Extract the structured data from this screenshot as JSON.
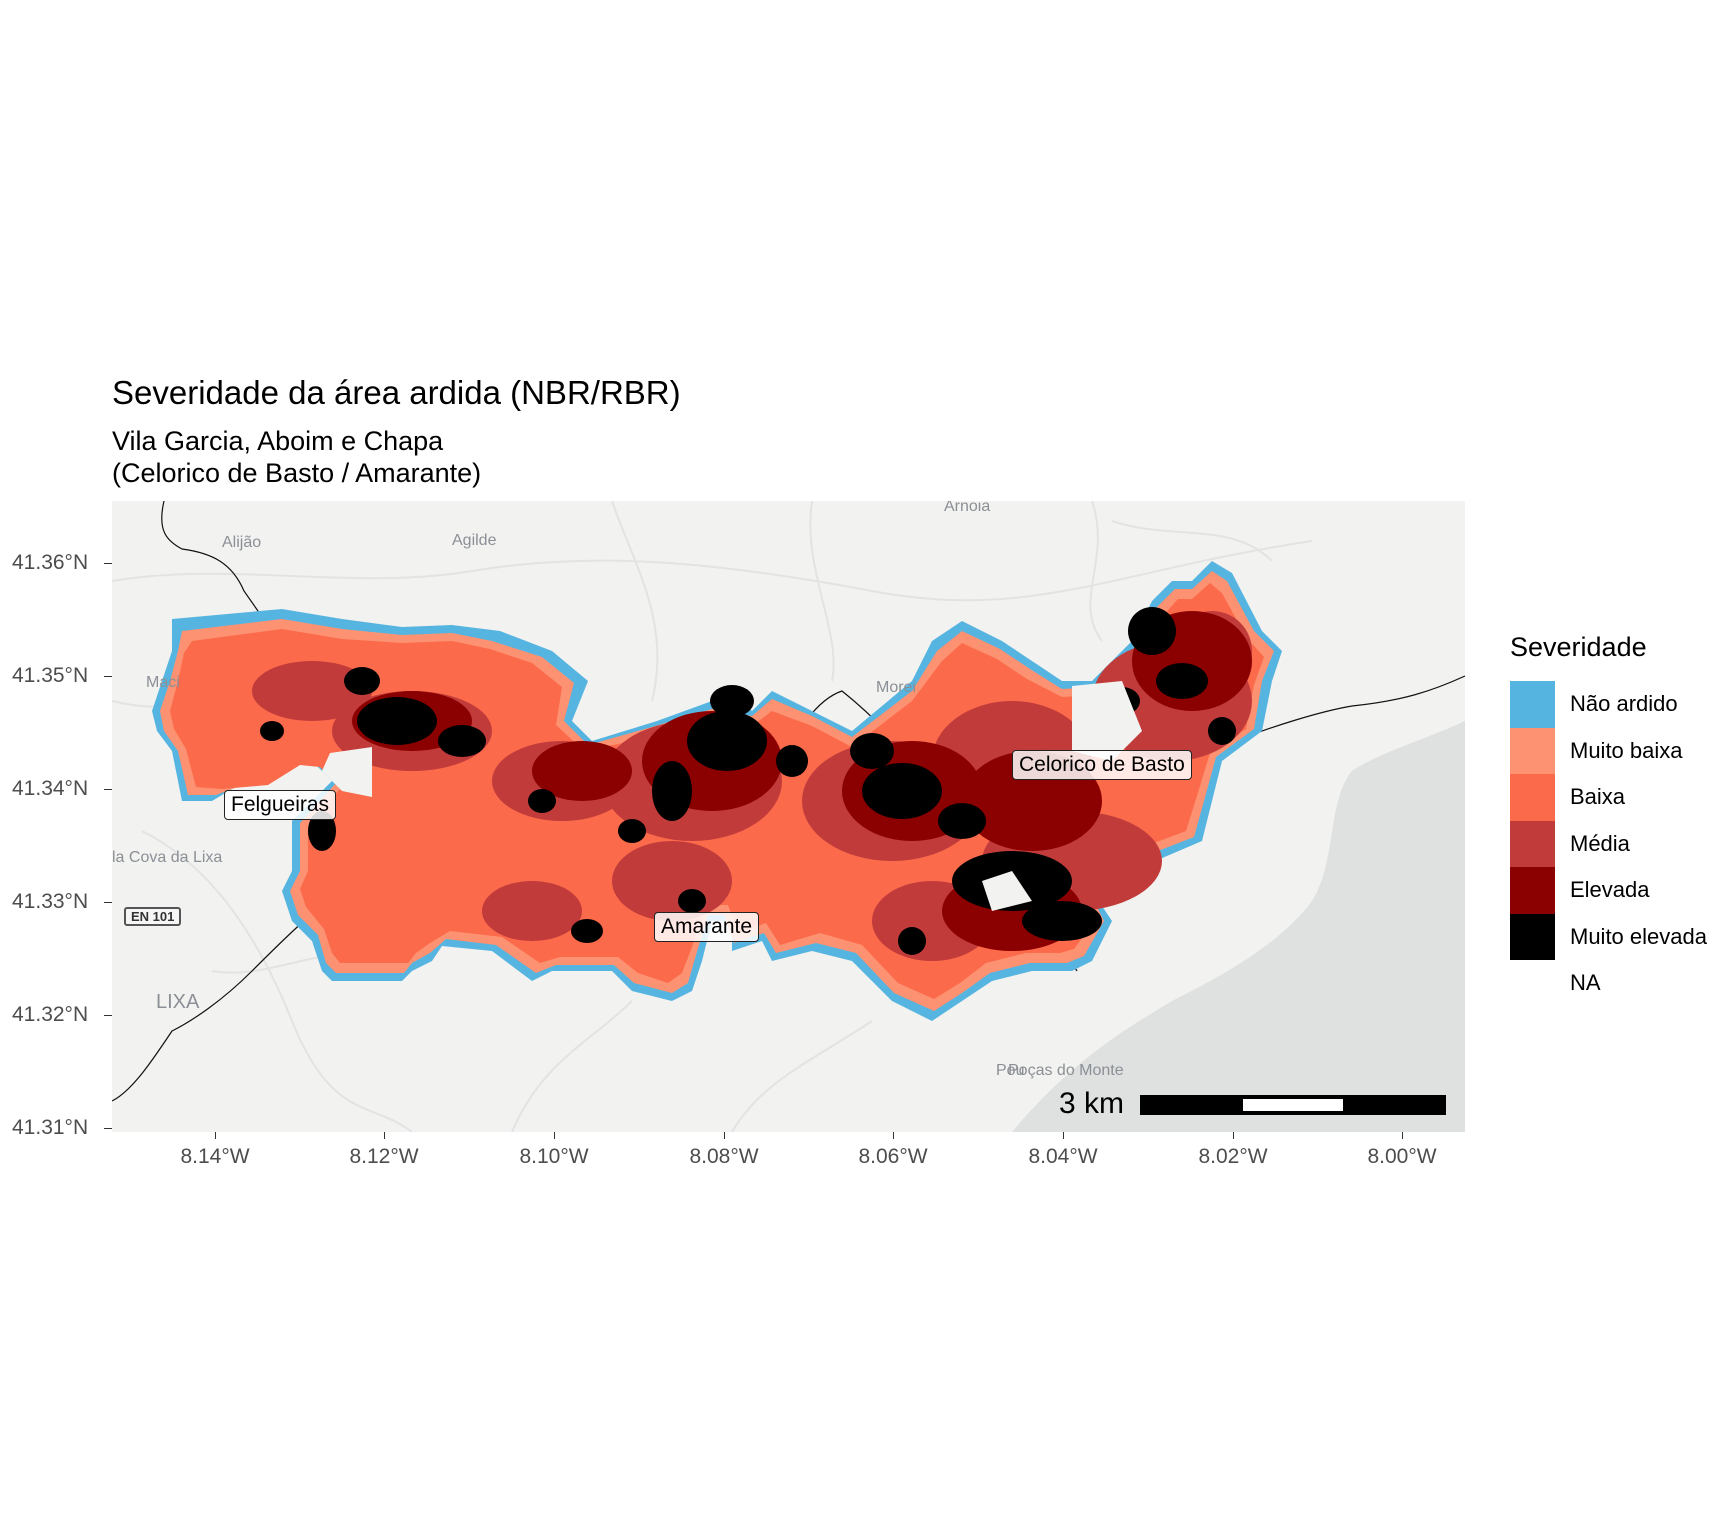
{
  "title": "Severidade da área ardida (NBR/RBR)",
  "subtitle_line1": "Vila Garcia, Aboim e Chapa",
  "subtitle_line2": "(Celorico de Basto / Amarante)",
  "axes": {
    "y_ticks": [
      "41.36°N",
      "41.35°N",
      "41.34°N",
      "41.33°N",
      "41.32°N",
      "41.31°N"
    ],
    "x_ticks": [
      "8.14°W",
      "8.12°W",
      "8.10°W",
      "8.08°W",
      "8.06°W",
      "8.04°W",
      "8.02°W",
      "8.00°W"
    ]
  },
  "legend": {
    "title": "Severidade",
    "items": [
      {
        "label": "Não ardido",
        "color": "#56b4e0"
      },
      {
        "label": "Muito baixa",
        "color": "#fc9272"
      },
      {
        "label": "Baixa",
        "color": "#fb6a4a"
      },
      {
        "label": "Média",
        "color": "#c23b3b"
      },
      {
        "label": "Elevada",
        "color": "#8b0000"
      },
      {
        "label": "Muito elevada",
        "color": "#000000"
      },
      {
        "label": "NA",
        "color": "transparent"
      }
    ]
  },
  "municipality_labels": {
    "felgueiras": "Felgueiras",
    "amarante": "Amarante",
    "celorico": "Celorico de Basto"
  },
  "basemap_labels": {
    "arnoia": "Arnoia",
    "alijao": "Alijão",
    "agilde": "Agilde",
    "maci": "Maci",
    "moreira": "Morei",
    "cova_lixa": "la Cova da Lixa",
    "lixa": "LIXA",
    "pocas_monte": "Poças do Monte",
    "pou": "Pou",
    "en101": "EN 101"
  },
  "scalebar": {
    "label": "3 km"
  }
}
